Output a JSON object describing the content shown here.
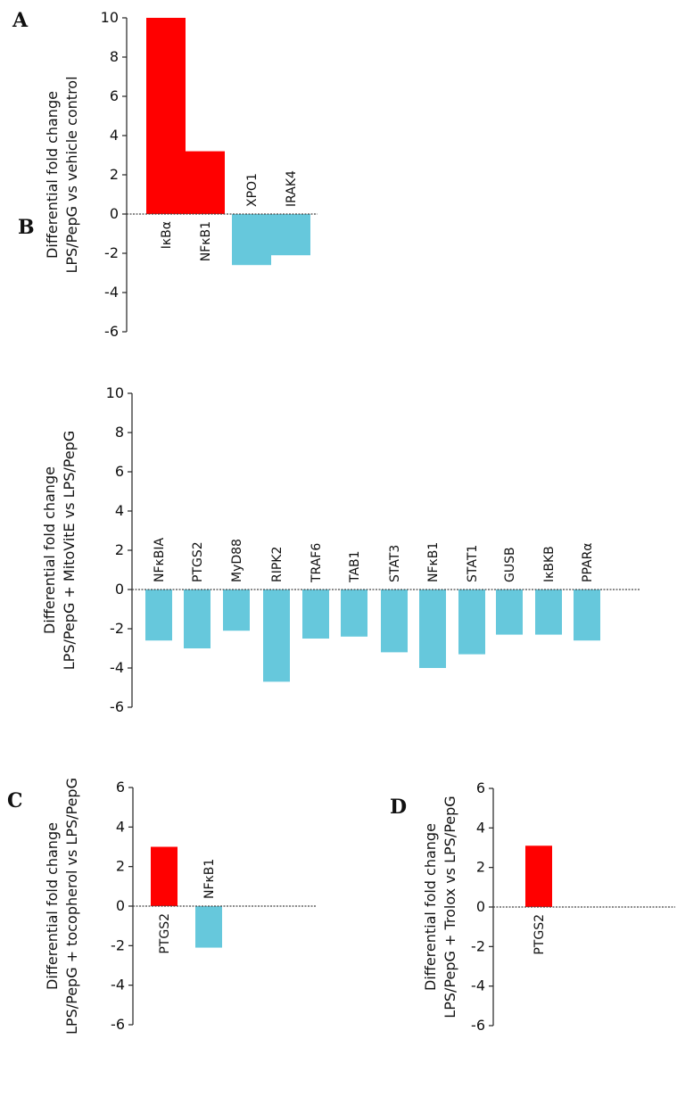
{
  "chart_data": [
    {
      "panel": "A",
      "type": "bar",
      "ylabel": [
        "Differential fold change",
        "LPS/PepG vs vehicle control"
      ],
      "ylim": [
        -6,
        10
      ],
      "yticks": [
        10,
        8,
        6,
        4,
        2,
        0,
        -2,
        -4,
        -6
      ],
      "categories": [
        "IκBα",
        "NFκB1",
        "XPO1",
        "IRAK4"
      ],
      "values": [
        10,
        3.2,
        -2.6,
        -2.1
      ],
      "colors": [
        "#ff0000",
        "#ff0000",
        "#66c8dc",
        "#66c8dc"
      ],
      "label_position": [
        "below",
        "below",
        "above",
        "above"
      ]
    },
    {
      "panel": "B",
      "type": "bar",
      "ylabel": [
        "Differential fold change",
        "LPS/PepG + MitoVitE vs LPS/PepG"
      ],
      "ylim": [
        -6,
        10
      ],
      "yticks": [
        10,
        8,
        6,
        4,
        2,
        0,
        -2,
        -4,
        -6
      ],
      "categories": [
        "NFκBIA",
        "PTGS2",
        "MyD88",
        "RIPK2",
        "TRAF6",
        "TAB1",
        "STAT3",
        "NFκB1",
        "STAT1",
        "GUSB",
        "IκBKB",
        "PPARα"
      ],
      "values": [
        -2.6,
        -3.0,
        -2.1,
        -4.7,
        -2.5,
        -2.4,
        -3.2,
        -4.0,
        -3.3,
        -2.3,
        -2.3,
        -2.6
      ],
      "colors": [
        "#66c8dc",
        "#66c8dc",
        "#66c8dc",
        "#66c8dc",
        "#66c8dc",
        "#66c8dc",
        "#66c8dc",
        "#66c8dc",
        "#66c8dc",
        "#66c8dc",
        "#66c8dc",
        "#66c8dc"
      ],
      "label_position": [
        "above",
        "above",
        "above",
        "above",
        "above",
        "above",
        "above",
        "above",
        "above",
        "above",
        "above",
        "above"
      ]
    },
    {
      "panel": "C",
      "type": "bar",
      "ylabel": [
        "Differential fold change",
        "LPS/PepG + tocopherol vs LPS/PepG"
      ],
      "ylim": [
        -6,
        6
      ],
      "yticks": [
        6,
        4,
        2,
        0,
        -2,
        -4,
        -6
      ],
      "categories": [
        "PTGS2",
        "NFκB1"
      ],
      "values": [
        3.0,
        -2.1
      ],
      "colors": [
        "#ff0000",
        "#66c8dc"
      ],
      "label_position": [
        "below",
        "above"
      ]
    },
    {
      "panel": "D",
      "type": "bar",
      "ylabel": [
        "Differential fold change",
        "LPS/PepG + Trolox vs LPS/PepG"
      ],
      "ylim": [
        -6,
        6
      ],
      "yticks": [
        6,
        4,
        2,
        0,
        -2,
        -4,
        -6
      ],
      "categories": [
        "PTGS2"
      ],
      "values": [
        3.1
      ],
      "colors": [
        "#ff0000"
      ],
      "label_position": [
        "below"
      ]
    }
  ]
}
